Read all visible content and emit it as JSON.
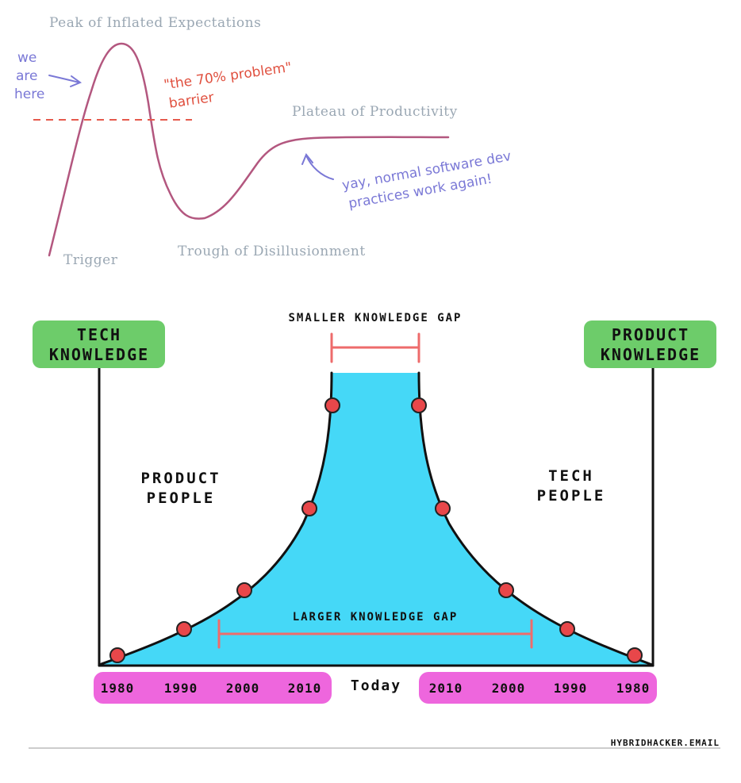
{
  "hype_cycle": {
    "peak_label": "Peak of Inflated Expectations",
    "plateau_label": "Plateau of Productivity",
    "trough_label": "Trough of Disillusionment",
    "trigger_label": "Trigger",
    "we_are_here": [
      "we",
      "are",
      "here"
    ],
    "barrier_note": [
      "\"the 70% problem\"",
      "barrier"
    ],
    "plateau_note": [
      "yay, normal software dev",
      "practices work again!"
    ],
    "colors": {
      "curve": "#b3577f",
      "labels": "#9aa7b3",
      "notes_blue": "#7a78d6",
      "barrier": "#e0503f"
    }
  },
  "knowledge_gap": {
    "left_box": [
      "TECH",
      "KNOWLEDGE"
    ],
    "right_box": [
      "PRODUCT",
      "KNOWLEDGE"
    ],
    "left_group": [
      "PRODUCT",
      "PEOPLE"
    ],
    "right_group": [
      "TECH",
      "PEOPLE"
    ],
    "smaller_gap_label": "SMALLER KNOWLEDGE GAP",
    "larger_gap_label": "LARGER KNOWLEDGE GAP",
    "timeline_left": [
      "1980",
      "1990",
      "2000",
      "2010"
    ],
    "timeline_center": "Today",
    "timeline_right": [
      "2010",
      "2000",
      "1990",
      "1980"
    ],
    "colors": {
      "fill": "#45d8f7",
      "box": "#6dcc6a",
      "timeline": "#ee66dd",
      "dots": "#e8474a",
      "gap_bar": "#ee6b6b"
    }
  },
  "footer": {
    "credit": "HYBRIDHACKER.EMAIL"
  }
}
